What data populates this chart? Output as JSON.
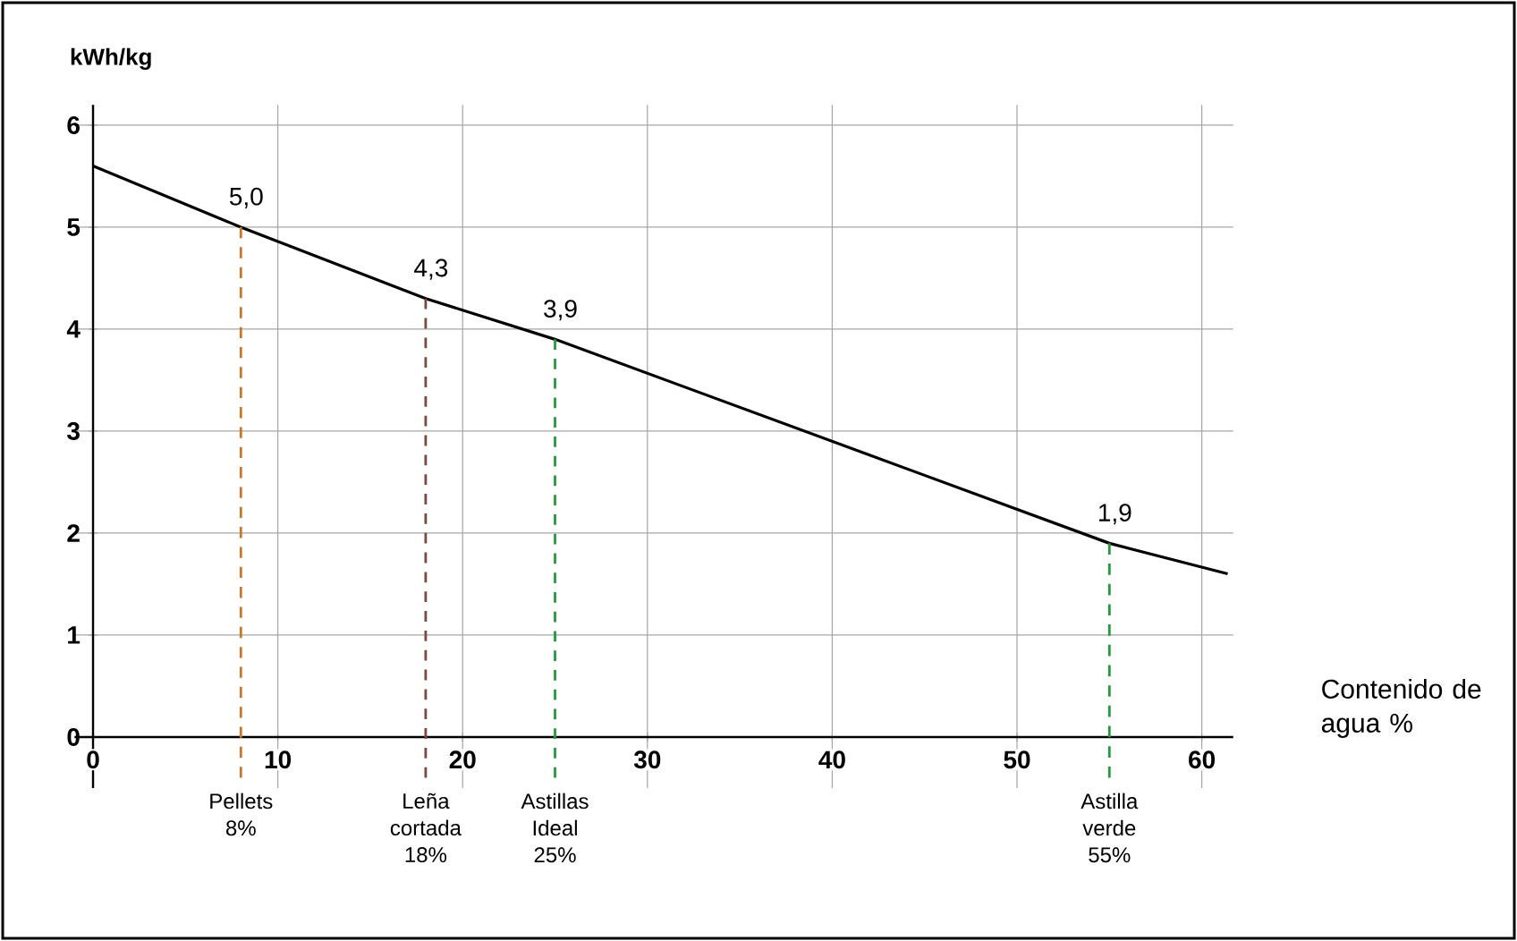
{
  "chart_data": {
    "type": "line",
    "ylabel": "kWh/kg",
    "xlabel": "Contenido de agua %",
    "xlim": [
      -1,
      61.7
    ],
    "ylim": [
      -0.5,
      6.2
    ],
    "xticks": [
      0,
      10,
      20,
      30,
      40,
      50,
      60
    ],
    "yticks": [
      0,
      1,
      2,
      3,
      4,
      5,
      6
    ],
    "grid": true,
    "marker": "none",
    "series": [
      {
        "color": "#000000",
        "line_style": "solid",
        "x": [
          0,
          8,
          18,
          25,
          55,
          61.4
        ],
        "values": [
          5.6,
          5.0,
          4.3,
          3.9,
          1.9,
          1.6
        ],
        "value_labels": [
          null,
          "5,0",
          "4,3",
          "3,9",
          "1,9",
          null
        ]
      },
      {
        "name": "Pellets 8%",
        "color": "#c8782a",
        "line_style": "dashed",
        "x": [
          8,
          8
        ],
        "values": [
          5.0,
          -0.4
        ]
      },
      {
        "name": "Leña cortada 18%",
        "color": "#7a4a3e",
        "line_style": "dashed",
        "x": [
          18,
          18
        ],
        "values": [
          4.3,
          -0.4
        ]
      },
      {
        "name": "Astillas Ideal 25%",
        "color": "#239a3c",
        "line_style": "dashed",
        "x": [
          25,
          25
        ],
        "values": [
          3.9,
          -0.4
        ]
      },
      {
        "name": "Astilla verde 55%",
        "color": "#239a3c",
        "line_style": "dashed",
        "x": [
          55,
          55
        ],
        "values": [
          1.9,
          -0.4
        ]
      }
    ]
  }
}
